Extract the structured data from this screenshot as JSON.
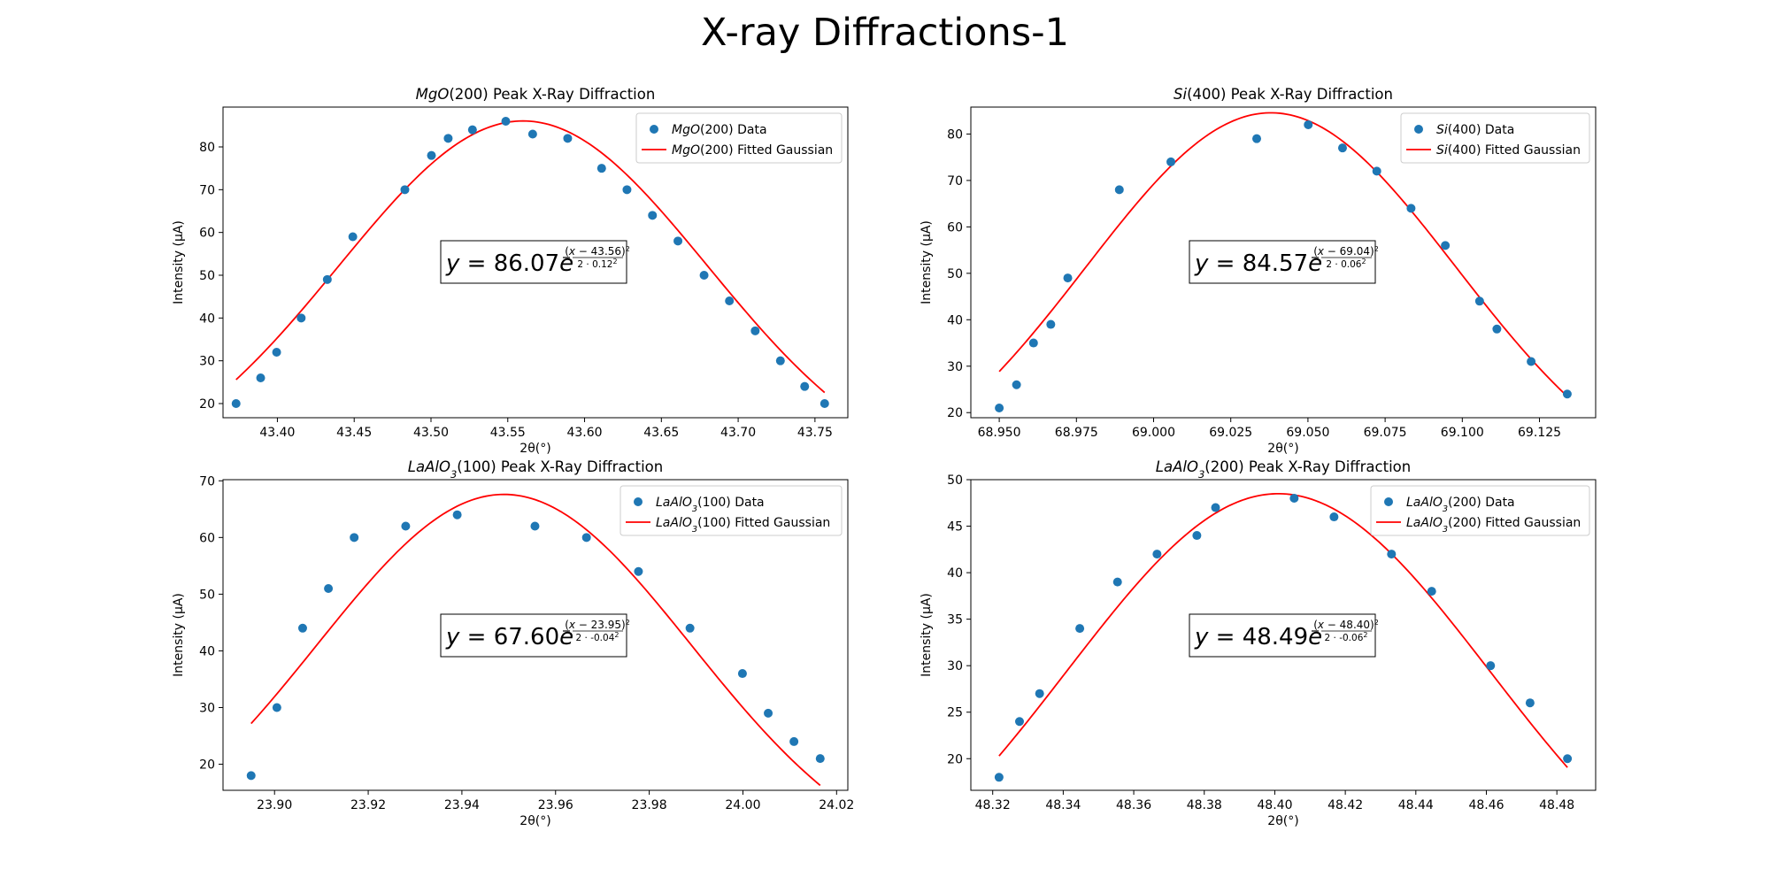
{
  "figure": {
    "title": "X-ray Diffractions-1"
  },
  "chart_data": [
    {
      "type": "scatter",
      "title": {
        "chem": "MgO",
        "rest": "(200) Peak X-Ray Diffraction"
      },
      "xlabel": "2θ(°)",
      "ylabel": "Intensity (μA)",
      "xlim": [
        43.3646,
        43.7714
      ],
      "ylim": [
        16.69,
        89.31
      ],
      "xticks": [
        43.4,
        43.45,
        43.5,
        43.55,
        43.6,
        43.65,
        43.7,
        43.75
      ],
      "yticks": [
        20,
        30,
        40,
        50,
        60,
        70,
        80
      ],
      "xtick_decimals": 2,
      "legend": {
        "position": "top-right",
        "data_label": {
          "chem": "MgO",
          "rest": "(200) Data"
        },
        "fit_label": {
          "chem": "MgO",
          "rest": "(200) Fitted Gaussian"
        }
      },
      "fit": {
        "amplitude": 86.07,
        "mean": 43.56,
        "sigma": 0.12,
        "x_range": [
          43.3731,
          43.7563
        ]
      },
      "equation": {
        "amp": "86.07",
        "mean": "43.56",
        "sigma": "0.12"
      },
      "grid": false,
      "points": [
        [
          43.3731,
          20
        ],
        [
          43.3891,
          26
        ],
        [
          43.3995,
          32
        ],
        [
          43.4155,
          40
        ],
        [
          43.4325,
          49
        ],
        [
          43.4491,
          59
        ],
        [
          43.483,
          70
        ],
        [
          43.5003,
          78
        ],
        [
          43.5112,
          82
        ],
        [
          43.527,
          84
        ],
        [
          43.5487,
          86
        ],
        [
          43.5662,
          83
        ],
        [
          43.589,
          82
        ],
        [
          43.6111,
          75
        ],
        [
          43.6276,
          70
        ],
        [
          43.6442,
          64
        ],
        [
          43.6608,
          58
        ],
        [
          43.6778,
          50
        ],
        [
          43.6943,
          44
        ],
        [
          43.7111,
          37
        ],
        [
          43.7275,
          30
        ],
        [
          43.7433,
          24
        ],
        [
          43.7563,
          20
        ]
      ]
    },
    {
      "type": "scatter",
      "title": {
        "chem": "Si",
        "rest": "(400) Peak X-Ray Diffraction"
      },
      "xlabel": "2θ(°)",
      "ylabel": "Intensity (μA)",
      "xlim": [
        68.9408,
        69.1432
      ],
      "ylim": [
        18.9,
        85.8
      ],
      "xticks": [
        68.95,
        68.975,
        69.0,
        69.025,
        69.05,
        69.075,
        69.1,
        69.125
      ],
      "yticks": [
        20,
        30,
        40,
        50,
        60,
        70,
        80
      ],
      "xtick_decimals": 3,
      "legend": {
        "position": "top-right",
        "data_label": {
          "chem": "Si",
          "rest": "(400) Data"
        },
        "fit_label": {
          "chem": "Si",
          "rest": "(400) Fitted Gaussian"
        }
      },
      "fit": {
        "amplitude": 84.57,
        "mean": 69.038,
        "sigma": 0.06,
        "x_range": [
          68.95,
          69.134
        ]
      },
      "equation": {
        "amp": "84.57",
        "mean": "69.04",
        "sigma": "0.06"
      },
      "grid": false,
      "points": [
        [
          68.95,
          21
        ],
        [
          68.9556,
          26
        ],
        [
          68.9611,
          35
        ],
        [
          68.9667,
          39
        ],
        [
          68.9722,
          49
        ],
        [
          68.9889,
          68
        ],
        [
          69.0056,
          74
        ],
        [
          69.0334,
          79
        ],
        [
          69.0501,
          82
        ],
        [
          69.0612,
          77
        ],
        [
          69.0723,
          72
        ],
        [
          69.0834,
          64
        ],
        [
          69.0945,
          56
        ],
        [
          69.1056,
          44
        ],
        [
          69.1112,
          38
        ],
        [
          69.1223,
          31
        ],
        [
          69.134,
          24
        ]
      ]
    },
    {
      "type": "scatter",
      "title": {
        "chem": "LaAlO",
        "sub": "3",
        "rest": "(100) Peak X-Ray Diffraction"
      },
      "xlabel": "2θ(°)",
      "ylabel": "Intensity (μA)",
      "xlim": [
        23.889,
        24.0224
      ],
      "ylim": [
        15.4,
        70.2
      ],
      "xticks": [
        23.9,
        23.92,
        23.94,
        23.96,
        23.98,
        24.0,
        24.02
      ],
      "yticks": [
        20,
        30,
        40,
        50,
        60,
        70
      ],
      "xtick_decimals": 2,
      "legend": {
        "position": "top-right",
        "data_label": {
          "chem": "LaAlO",
          "sub": "3",
          "rest": "(100) Data"
        },
        "fit_label": {
          "chem": "LaAlO",
          "sub": "3",
          "rest": "(100) Fitted Gaussian"
        }
      },
      "fit": {
        "amplitude": 67.6,
        "mean": 23.949,
        "sigma": 0.04,
        "x_range": [
          23.895,
          24.0165
        ]
      },
      "equation": {
        "amp": "67.60",
        "mean": "23.95",
        "sigma": "-0.04"
      },
      "grid": false,
      "points": [
        [
          23.895,
          18
        ],
        [
          23.9005,
          30
        ],
        [
          23.906,
          44
        ],
        [
          23.9115,
          51
        ],
        [
          23.917,
          60
        ],
        [
          23.928,
          62
        ],
        [
          23.939,
          64
        ],
        [
          23.9556,
          62
        ],
        [
          23.9666,
          60
        ],
        [
          23.9777,
          54
        ],
        [
          23.9887,
          44
        ],
        [
          23.9999,
          36
        ],
        [
          24.0054,
          29
        ],
        [
          24.0109,
          24
        ],
        [
          24.0165,
          21
        ]
      ]
    },
    {
      "type": "scatter",
      "title": {
        "chem": "LaAlO",
        "sub": "3",
        "rest": "(200) Peak X-Ray Diffraction"
      },
      "xlabel": "2θ(°)",
      "ylabel": "Intensity (μA)",
      "xlim": [
        48.3138,
        48.491
      ],
      "ylim": [
        16.6,
        50.0
      ],
      "xticks": [
        48.32,
        48.34,
        48.36,
        48.38,
        48.4,
        48.42,
        48.44,
        48.46,
        48.48
      ],
      "yticks": [
        20,
        25,
        30,
        35,
        40,
        45,
        50
      ],
      "xtick_decimals": 2,
      "legend": {
        "position": "top-right",
        "data_label": {
          "chem": "LaAlO",
          "sub": "3",
          "rest": "(200) Data"
        },
        "fit_label": {
          "chem": "LaAlO",
          "sub": "3",
          "rest": "(200) Fitted Gaussian"
        }
      },
      "fit": {
        "amplitude": 48.49,
        "mean": 48.401,
        "sigma": 0.06,
        "x_range": [
          48.3218,
          48.483
        ]
      },
      "equation": {
        "amp": "48.49",
        "mean": "48.40",
        "sigma": "-0.06"
      },
      "grid": false,
      "points": [
        [
          48.3218,
          18
        ],
        [
          48.3276,
          24
        ],
        [
          48.3333,
          27
        ],
        [
          48.3447,
          34
        ],
        [
          48.3554,
          39
        ],
        [
          48.3666,
          42
        ],
        [
          48.3779,
          44
        ],
        [
          48.3832,
          47
        ],
        [
          48.4055,
          48
        ],
        [
          48.4168,
          46
        ],
        [
          48.4331,
          42
        ],
        [
          48.4445,
          38
        ],
        [
          48.4612,
          30
        ],
        [
          48.4724,
          26
        ],
        [
          48.483,
          20
        ]
      ]
    }
  ],
  "colors": {
    "points": "#1f77b4",
    "fit": "#ff0000",
    "axes": "#000000",
    "legend_border": "#cccccc"
  }
}
